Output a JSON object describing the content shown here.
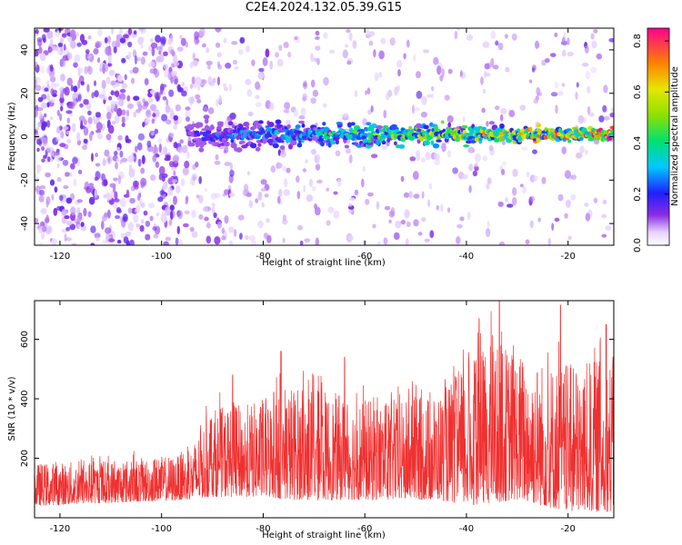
{
  "title": "C2E4.2024.132.05.39.G15",
  "chart_data": [
    {
      "type": "heatmap",
      "title": "C2E4.2024.132.05.39.G15",
      "xlabel": "Height of straight line (km)",
      "ylabel": "Frequency (Hz)",
      "xlim": [
        -125,
        -11
      ],
      "ylim": [
        -50,
        50
      ],
      "x_ticks": [
        -120,
        -100,
        -80,
        -60,
        -40,
        -20
      ],
      "y_ticks": [
        -40,
        -20,
        0,
        20,
        40
      ],
      "colorbar": {
        "label": "Normalized spectral amplitude",
        "range": [
          0,
          0.85
        ],
        "ticks": [
          0.0,
          0.2,
          0.4,
          0.6,
          0.8
        ]
      },
      "signal_track": {
        "frequency_hz": 1,
        "start_height_km": -95,
        "end_height_km": -11,
        "amplitude_start": 0.2,
        "amplitude_end": 0.8
      }
    },
    {
      "type": "line",
      "xlabel": "Height of straight line (km)",
      "ylabel": "SNR (10 * v/v)",
      "xlim": [
        -125,
        -11
      ],
      "ylim": [
        0,
        730
      ],
      "x_ticks": [
        -120,
        -100,
        -80,
        -60,
        -40,
        -20
      ],
      "y_ticks": [
        200,
        400,
        600
      ],
      "color": "#f03030",
      "envelope": [
        {
          "x": -125,
          "low": 40,
          "high": 210
        },
        {
          "x": -110,
          "low": 50,
          "high": 220
        },
        {
          "x": -95,
          "low": 60,
          "high": 240
        },
        {
          "x": -90,
          "low": 70,
          "high": 420
        },
        {
          "x": -80,
          "low": 70,
          "high": 450
        },
        {
          "x": -75,
          "low": 60,
          "high": 520
        },
        {
          "x": -65,
          "low": 60,
          "high": 480
        },
        {
          "x": -55,
          "low": 60,
          "high": 440
        },
        {
          "x": -45,
          "low": 60,
          "high": 490
        },
        {
          "x": -40,
          "low": 40,
          "high": 600
        },
        {
          "x": -35,
          "low": 50,
          "high": 700
        },
        {
          "x": -30,
          "low": 60,
          "high": 650
        },
        {
          "x": -25,
          "low": 40,
          "high": 620
        },
        {
          "x": -20,
          "low": 20,
          "high": 600
        },
        {
          "x": -11,
          "low": 20,
          "high": 640
        }
      ],
      "peaks": [
        {
          "x": -33.5,
          "y": 730
        },
        {
          "x": -21.5,
          "y": 715
        },
        {
          "x": -37.5,
          "y": 670
        },
        {
          "x": -12.5,
          "y": 650
        },
        {
          "x": -76.5,
          "y": 560
        },
        {
          "x": -64,
          "y": 540
        },
        {
          "x": -86,
          "y": 480
        }
      ]
    }
  ]
}
